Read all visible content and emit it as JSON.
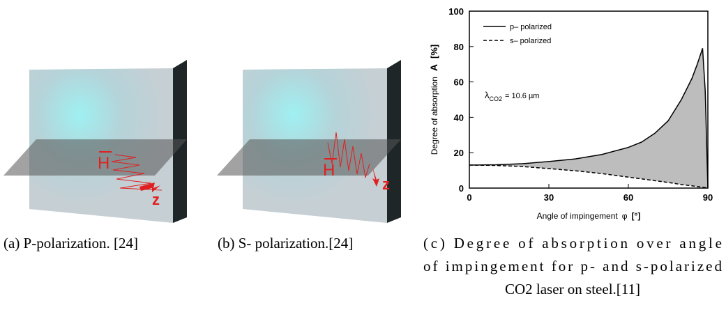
{
  "figures": [
    {
      "field_label": "H",
      "axis_label": "z",
      "caption": "(a) P-polarization. [24]"
    },
    {
      "field_label": "H",
      "axis_label": "z",
      "caption": "(b) S- polarization.[24]"
    }
  ],
  "chart_caption": [
    "(c) Degree of absorption over angle",
    "of impingement for p- and s-polarized",
    "CO2 laser on steel.[11]"
  ],
  "chart_data": {
    "type": "line",
    "y_label": "Degree of absorption",
    "y_symbol": "A",
    "y_unit": "[%]",
    "x_label": "Angle of impingement",
    "x_symbol": "φ",
    "x_unit": "[°]",
    "annotation": {
      "symbol": "λ",
      "subscript": "CO2",
      "text": "= 10.6 µm"
    },
    "x": [
      0,
      10,
      20,
      30,
      40,
      50,
      60,
      65,
      70,
      75,
      80,
      84,
      86,
      88,
      89,
      90
    ],
    "series": [
      {
        "name": "p– polarized",
        "color": "#000000",
        "dash": false,
        "values": [
          13,
          13.2,
          13.8,
          15,
          16.5,
          19,
          23,
          26,
          31,
          38,
          50,
          62,
          70,
          79,
          55,
          0
        ]
      },
      {
        "name": "s– polarized",
        "color": "#000000",
        "dash": true,
        "values": [
          13,
          12.8,
          12.2,
          11,
          9.8,
          8.2,
          6.2,
          5.2,
          4.2,
          3.2,
          2,
          1.3,
          0.9,
          0.5,
          0.3,
          0
        ]
      }
    ],
    "fill_between": true,
    "fill_color": "#bdbdbd",
    "xlim": [
      0,
      90
    ],
    "ylim": [
      0,
      100
    ],
    "xticks": [
      0,
      30,
      60,
      90
    ],
    "yticks": [
      0,
      20,
      40,
      60,
      80,
      100
    ]
  }
}
